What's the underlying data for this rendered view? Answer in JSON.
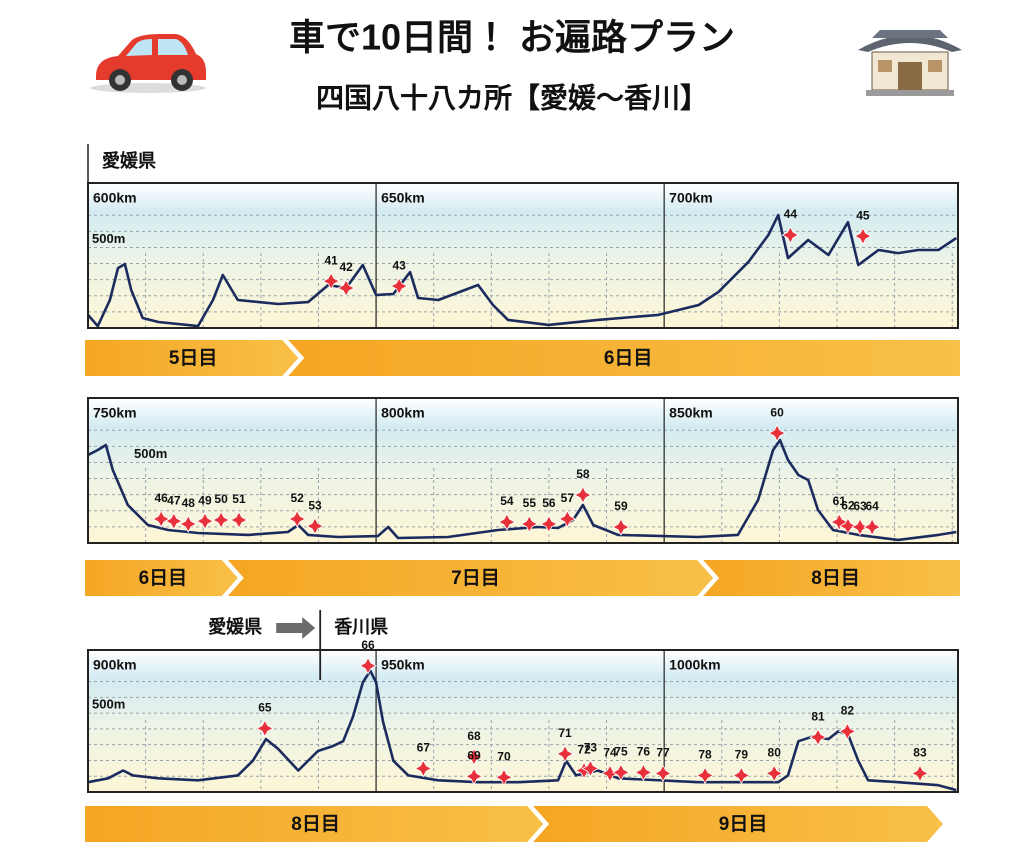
{
  "title": "車で10日間！ お遍路プラン",
  "subtitle": "四国八十八カ所【愛媛～香川】",
  "chart_data": [
    {
      "type": "line",
      "color": "#1b2b5e",
      "prefectures": [
        "愛媛県"
      ],
      "xlim": [
        600,
        751
      ],
      "ylim": [
        0,
        900
      ],
      "xticks": [
        {
          "value": 600,
          "label": "600km"
        },
        {
          "value": 650,
          "label": "650km"
        },
        {
          "value": 700,
          "label": "700km"
        }
      ],
      "minor_xticks": [
        610,
        620,
        630,
        640,
        660,
        670,
        680,
        690,
        710,
        720,
        730,
        740,
        750
      ],
      "yticks": [
        {
          "value": 500,
          "label": "500m"
        }
      ],
      "minor_yticks": [
        100,
        200,
        300,
        400,
        600,
        700
      ],
      "x": [
        600.0,
        601.7,
        603.8,
        605.2,
        606.4,
        607.5,
        609.5,
        612.2,
        619.1,
        621.7,
        623.4,
        626.0,
        633.0,
        638.2,
        641.7,
        644.8,
        647.7,
        650.0,
        653.0,
        655.9,
        657.3,
        660.8,
        667.7,
        670.3,
        672.9,
        679.9,
        688.5,
        699.0,
        706.0,
        709.4,
        714.6,
        718.1,
        719.8,
        721.5,
        725.0,
        728.5,
        731.9,
        733.7,
        737.2,
        740.6,
        744.1,
        747.6,
        750.7
      ],
      "values": [
        81,
        12,
        174,
        372,
        397,
        236,
        62,
        37,
        12,
        174,
        329,
        174,
        149,
        161,
        267,
        248,
        391,
        205,
        211,
        347,
        186,
        174,
        267,
        143,
        50,
        19,
        50,
        81,
        143,
        223,
        409,
        577,
        701,
        434,
        546,
        453,
        657,
        391,
        484,
        465,
        484,
        484,
        558
      ],
      "temples": [
        {
          "label": "41",
          "x": 642.2,
          "y": 291
        },
        {
          "label": "42",
          "x": 644.8,
          "y": 248
        },
        {
          "label": "43",
          "x": 654.0,
          "y": 260
        },
        {
          "label": "44",
          "x": 721.9,
          "y": 577
        },
        {
          "label": "45",
          "x": 734.5,
          "y": 570
        }
      ],
      "days": [
        {
          "label": "5日目",
          "start": 600,
          "end": 636.5
        },
        {
          "label": "6日目",
          "start": 636.5,
          "end": 751
        }
      ]
    },
    {
      "type": "line",
      "color": "#1b2b5e",
      "xlim": [
        750,
        901
      ],
      "ylim": [
        0,
        900
      ],
      "xticks": [
        {
          "value": 750,
          "label": "750km"
        },
        {
          "value": 800,
          "label": "800km"
        },
        {
          "value": 850,
          "label": "850km"
        }
      ],
      "minor_xticks": [
        760,
        770,
        780,
        790,
        810,
        820,
        830,
        840,
        860,
        870,
        880,
        890,
        900
      ],
      "yticks": [
        {
          "value": 500,
          "label": "500m"
        }
      ],
      "minor_yticks": [
        100,
        200,
        300,
        400,
        600,
        700
      ],
      "x": [
        750.0,
        751.7,
        753.1,
        754.3,
        756.9,
        760.4,
        763.9,
        769.1,
        777.8,
        784.7,
        786.5,
        788.2,
        793.4,
        800.3,
        802.1,
        803.8,
        812.5,
        821.2,
        828.1,
        831.6,
        834.2,
        835.9,
        837.7,
        842.0,
        855.9,
        862.8,
        866.3,
        868.9,
        870.1,
        871.5,
        873.3,
        875.0,
        876.7,
        879.3,
        883.7,
        890.6,
        897.6,
        900.7
      ],
      "values": [
        546,
        577,
        608,
        453,
        236,
        112,
        81,
        62,
        50,
        68,
        112,
        50,
        37,
        43,
        99,
        31,
        37,
        81,
        99,
        93,
        143,
        236,
        112,
        50,
        37,
        50,
        267,
        577,
        639,
        515,
        422,
        391,
        205,
        81,
        50,
        19,
        50,
        68
      ],
      "temples": [
        {
          "label": "46",
          "x": 762.7,
          "y": 149
        },
        {
          "label": "47",
          "x": 764.9,
          "y": 136
        },
        {
          "label": "48",
          "x": 767.4,
          "y": 118
        },
        {
          "label": "49",
          "x": 770.3,
          "y": 136
        },
        {
          "label": "50",
          "x": 773.1,
          "y": 143
        },
        {
          "label": "51",
          "x": 776.2,
          "y": 143
        },
        {
          "label": "52",
          "x": 786.3,
          "y": 149
        },
        {
          "label": "53",
          "x": 789.4,
          "y": 105
        },
        {
          "label": "54",
          "x": 822.7,
          "y": 130
        },
        {
          "label": "55",
          "x": 826.6,
          "y": 118
        },
        {
          "label": "56",
          "x": 830.0,
          "y": 118
        },
        {
          "label": "57",
          "x": 833.2,
          "y": 149
        },
        {
          "label": "58",
          "x": 835.9,
          "y": 298
        },
        {
          "label": "59",
          "x": 842.5,
          "y": 99
        },
        {
          "label": "60",
          "x": 869.6,
          "y": 682
        },
        {
          "label": "61",
          "x": 880.4,
          "y": 130
        },
        {
          "label": "62",
          "x": 881.9,
          "y": 105
        },
        {
          "label": "63",
          "x": 884.0,
          "y": 99
        },
        {
          "label": "64",
          "x": 886.1,
          "y": 99
        }
      ],
      "days": [
        {
          "label": "6日目",
          "start": 750,
          "end": 776.0
        },
        {
          "label": "7日目",
          "start": 776.0,
          "end": 858.5
        },
        {
          "label": "8日目",
          "start": 858.5,
          "end": 901
        }
      ]
    },
    {
      "type": "line",
      "color": "#1b2b5e",
      "prefectures": [
        "愛媛県",
        "香川県"
      ],
      "border": 940.3,
      "xlim": [
        900,
        1051
      ],
      "ylim": [
        0,
        900
      ],
      "xticks": [
        {
          "value": 900,
          "label": "900km"
        },
        {
          "value": 950,
          "label": "950km"
        },
        {
          "value": 1000,
          "label": "1000km"
        }
      ],
      "minor_xticks": [
        910,
        920,
        930,
        940,
        960,
        970,
        980,
        990,
        1010,
        1020,
        1030,
        1040,
        1050
      ],
      "yticks": [
        {
          "value": 500,
          "label": "500m"
        }
      ],
      "minor_yticks": [
        100,
        200,
        300,
        400,
        600,
        700
      ],
      "x": [
        900.0,
        903.5,
        906.1,
        907.8,
        912.2,
        919.1,
        926.0,
        928.6,
        930.9,
        933.0,
        936.5,
        939.9,
        942.5,
        944.3,
        946.0,
        947.7,
        949.0,
        950.0,
        951.2,
        953.0,
        955.6,
        960.8,
        967.7,
        974.7,
        981.6,
        983.0,
        984.7,
        988.5,
        992.0,
        1005.9,
        1019.8,
        1021.5,
        1023.3,
        1025.9,
        1028.5,
        1030.2,
        1031.9,
        1033.7,
        1035.4,
        1040.6,
        1047.6,
        1050.7
      ],
      "values": [
        62,
        87,
        136,
        105,
        87,
        74,
        105,
        198,
        335,
        273,
        136,
        260,
        291,
        322,
        477,
        694,
        769,
        694,
        446,
        198,
        105,
        74,
        62,
        62,
        74,
        198,
        105,
        136,
        87,
        62,
        62,
        105,
        322,
        353,
        335,
        384,
        366,
        198,
        74,
        62,
        43,
        12
      ],
      "temples": [
        {
          "label": "65",
          "x": 930.7,
          "y": 403
        },
        {
          "label": "66",
          "x": 948.6,
          "y": 800
        },
        {
          "label": "67",
          "x": 958.2,
          "y": 149
        },
        {
          "label": "68",
          "x": 967.0,
          "y": 223
        },
        {
          "label": "69",
          "x": 967.0,
          "y": 99
        },
        {
          "label": "70",
          "x": 972.2,
          "y": 93
        },
        {
          "label": "71",
          "x": 982.8,
          "y": 242
        },
        {
          "label": "72",
          "x": 986.1,
          "y": 136
        },
        {
          "label": "73",
          "x": 987.2,
          "y": 149
        },
        {
          "label": "74",
          "x": 990.6,
          "y": 118
        },
        {
          "label": "75",
          "x": 992.5,
          "y": 124
        },
        {
          "label": "76",
          "x": 996.4,
          "y": 124
        },
        {
          "label": "77",
          "x": 999.8,
          "y": 118
        },
        {
          "label": "78",
          "x": 1007.1,
          "y": 105
        },
        {
          "label": "79",
          "x": 1013.4,
          "y": 105
        },
        {
          "label": "80",
          "x": 1019.1,
          "y": 118
        },
        {
          "label": "81",
          "x": 1026.7,
          "y": 347
        },
        {
          "label": "82",
          "x": 1031.8,
          "y": 384
        },
        {
          "label": "83",
          "x": 1044.4,
          "y": 118
        }
      ],
      "days": [
        {
          "label": "8日目",
          "start": 900,
          "end": 979
        },
        {
          "label": "9日目",
          "start": 979,
          "end": 1048.4
        }
      ]
    }
  ]
}
